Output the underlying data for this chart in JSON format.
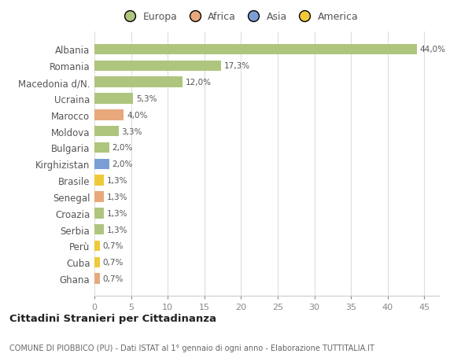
{
  "countries": [
    "Albania",
    "Romania",
    "Macedonia d/N.",
    "Ucraina",
    "Marocco",
    "Moldova",
    "Bulgaria",
    "Kirghizistan",
    "Brasile",
    "Senegal",
    "Croazia",
    "Serbia",
    "Perù",
    "Cuba",
    "Ghana"
  ],
  "values": [
    44.0,
    17.3,
    12.0,
    5.3,
    4.0,
    3.3,
    2.0,
    2.0,
    1.3,
    1.3,
    1.3,
    1.3,
    0.7,
    0.7,
    0.7
  ],
  "labels": [
    "44,0%",
    "17,3%",
    "12,0%",
    "5,3%",
    "4,0%",
    "3,3%",
    "2,0%",
    "2,0%",
    "1,3%",
    "1,3%",
    "1,3%",
    "1,3%",
    "0,7%",
    "0,7%",
    "0,7%"
  ],
  "colors": [
    "#aec57d",
    "#aec57d",
    "#aec57d",
    "#aec57d",
    "#e8a87c",
    "#aec57d",
    "#aec57d",
    "#7b9fd4",
    "#f0c93a",
    "#e8a87c",
    "#aec57d",
    "#aec57d",
    "#f0c93a",
    "#f0c93a",
    "#e8a87c"
  ],
  "legend_labels": [
    "Europa",
    "Africa",
    "Asia",
    "America"
  ],
  "legend_colors": [
    "#aec57d",
    "#e8a87c",
    "#7b9fd4",
    "#f0c93a"
  ],
  "title": "Cittadini Stranieri per Cittadinanza",
  "subtitle": "COMUNE DI PIOBBICO (PU) - Dati ISTAT al 1° gennaio di ogni anno - Elaborazione TUTTITALIA.IT",
  "xlim": [
    0,
    47
  ],
  "xticks": [
    0,
    5,
    10,
    15,
    20,
    25,
    30,
    35,
    40,
    45
  ],
  "bg_color": "#ffffff",
  "grid_color": "#dddddd"
}
